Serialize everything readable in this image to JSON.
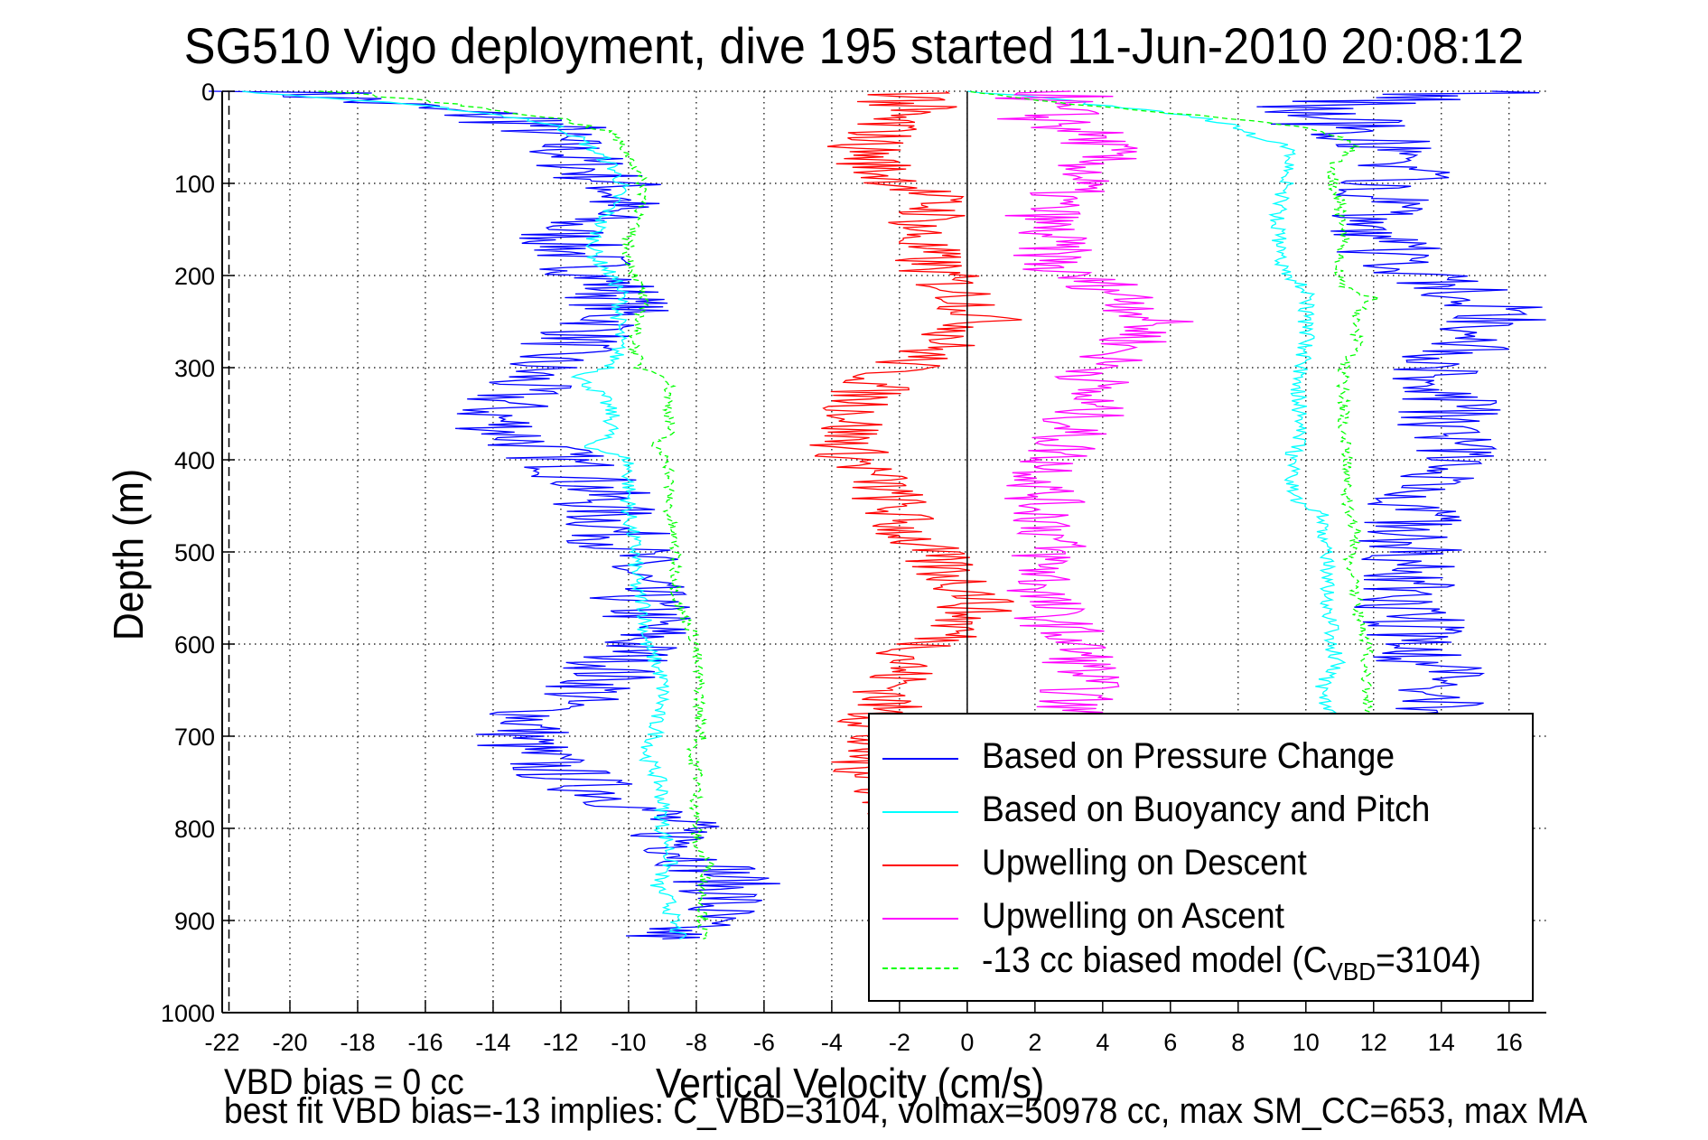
{
  "chart_data": {
    "type": "line",
    "title": "SG510 Vigo deployment, dive 195 started 11-Jun-2010 20:08:12",
    "xlabel": "Vertical Velocity (cm/s)",
    "ylabel": "Depth (m)",
    "xlim": [
      -22,
      17.1
    ],
    "ylim": [
      1000,
      0
    ],
    "y_reversed": true,
    "grid": true,
    "grid_style": "dotted",
    "x_ticks": [
      -22,
      -20,
      -18,
      -16,
      -14,
      -12,
      -10,
      -8,
      -6,
      -4,
      -2,
      0,
      2,
      4,
      6,
      8,
      10,
      12,
      14,
      16
    ],
    "y_ticks": [
      0,
      100,
      200,
      300,
      400,
      500,
      600,
      700,
      800,
      900,
      1000
    ],
    "reference_lines": [
      {
        "name": "zero-velocity-line",
        "x": 0,
        "style": "solid",
        "color": "#000000"
      },
      {
        "name": "min-velocity-dashed-line",
        "x": -21.8,
        "style": "dashed",
        "color": "#000000"
      }
    ],
    "legend_position": "bottom-right",
    "series": [
      {
        "name": "Based on Pressure Change",
        "color": "#0000ff",
        "style": "solid",
        "segments": [
          {
            "label": "descent",
            "depth": [
              0,
              10,
              20,
              30,
              45,
              60,
              75,
              90,
              105,
              120,
              135,
              150,
              165,
              180,
              195,
              210,
              230,
              250,
              270,
              290,
              310,
              330,
              350,
              370,
              390,
              410,
              430,
              450,
              470,
              490,
              510,
              530,
              550,
              570,
              590,
              610,
              630,
              650,
              670,
              690,
              710,
              730,
              750,
              770,
              790,
              810,
              830,
              850,
              870,
              890,
              905,
              915,
              920
            ],
            "velocity": [
              -20,
              -18,
              -16,
              -13,
              -12.5,
              -12,
              -11.5,
              -11,
              -10.2,
              -10.3,
              -11,
              -12,
              -11.8,
              -11.5,
              -11,
              -10.5,
              -10.2,
              -10.5,
              -11.5,
              -12.5,
              -13,
              -13.5,
              -14,
              -13.5,
              -12.5,
              -11.5,
              -11,
              -10.8,
              -10.5,
              -10.2,
              -10,
              -10,
              -9.8,
              -9.5,
              -9.5,
              -10,
              -10.5,
              -11,
              -12.5,
              -13,
              -13.2,
              -12.5,
              -11.5,
              -10,
              -9,
              -8.5,
              -8,
              -7.2,
              -7,
              -7.5,
              -8.5,
              -9,
              -9
            ]
          },
          {
            "label": "ascent",
            "depth": [
              920,
              900,
              880,
              860,
              840,
              820,
              800,
              780,
              760,
              740,
              720,
              700,
              680,
              660,
              640,
              620,
              600,
              580,
              560,
              540,
              520,
              500,
              480,
              460,
              440,
              420,
              400,
              380,
              360,
              340,
              320,
              300,
              280,
              260,
              240,
              225,
              210,
              195,
              180,
              165,
              150,
              135,
              120,
              105,
              90,
              75,
              60,
              45,
              30,
              15,
              5,
              0
            ],
            "velocity": [
              14,
              13.8,
              13.5,
              13.2,
              13,
              12.8,
              13.2,
              13.5,
              13,
              12.5,
              12.5,
              13.5,
              14,
              14.2,
              14,
              13.5,
              13.5,
              13.2,
              13,
              12.8,
              12.8,
              13,
              13.2,
              13.3,
              13.5,
              13.8,
              14,
              14.2,
              14.3,
              14.3,
              14.2,
              14,
              14.5,
              15.5,
              15.8,
              15.2,
              14,
              13,
              12.5,
              12.5,
              12.3,
              12.3,
              12.3,
              12.5,
              12.8,
              13,
              12.5,
              11.5,
              11,
              10.5,
              14,
              15.5
            ]
          }
        ]
      },
      {
        "name": "Based on Buoyancy and Pitch",
        "color": "#00ffff",
        "style": "solid",
        "segments": [
          {
            "label": "descent",
            "depth": [
              0,
              10,
              20,
              30,
              40,
              50,
              65,
              80,
              100,
              120,
              140,
              160,
              180,
              200,
              220,
              240,
              260,
              280,
              300,
              310,
              330,
              350,
              370,
              385,
              400,
              420,
              440,
              460,
              480,
              500,
              520,
              540,
              560,
              580,
              600,
              620,
              640,
              660,
              680,
              700,
              720,
              740,
              760,
              780,
              800,
              820,
              840,
              860,
              880,
              900,
              920
            ],
            "velocity": [
              -21.5,
              -18,
              -15,
              -13,
              -12,
              -11.5,
              -11,
              -10.5,
              -10.2,
              -10.4,
              -10.8,
              -11,
              -11,
              -10.5,
              -10.2,
              -10.3,
              -10.3,
              -10.3,
              -10.5,
              -11.5,
              -10.8,
              -10.5,
              -10.5,
              -11.2,
              -10,
              -10,
              -10,
              -10,
              -9.9,
              -9.8,
              -9.8,
              -9.8,
              -9.5,
              -9.5,
              -9.5,
              -9.2,
              -9,
              -9,
              -9.2,
              -9.2,
              -9.5,
              -9.2,
              -9,
              -9,
              -9,
              -8.8,
              -8.8,
              -9.2,
              -8.8,
              -8.7,
              -8.5
            ]
          },
          {
            "label": "ascent",
            "depth": [
              920,
              900,
              880,
              860,
              840,
              820,
              800,
              780,
              760,
              740,
              720,
              700,
              680,
              660,
              640,
              620,
              600,
              580,
              560,
              540,
              520,
              500,
              480,
              460,
              450,
              430,
              410,
              400,
              380,
              360,
              340,
              320,
              300,
              280,
              260,
              240,
              220,
              200,
              180,
              160,
              140,
              120,
              100,
              80,
              60,
              50,
              40,
              30,
              20,
              10,
              0
            ],
            "velocity": [
              10.5,
              10.5,
              10.5,
              10.5,
              10.5,
              10.5,
              10.8,
              10.8,
              10.6,
              10.5,
              10.6,
              10.8,
              10.8,
              10.5,
              10.5,
              10.9,
              10.8,
              10.8,
              10.6,
              10.6,
              10.6,
              10.6,
              10.5,
              10.5,
              9.8,
              9.6,
              9.6,
              9.5,
              9.8,
              9.8,
              9.8,
              9.8,
              9.8,
              10,
              10,
              10,
              10.1,
              9.5,
              9.2,
              9.2,
              9.2,
              9.2,
              9.5,
              9.5,
              9.5,
              8.5,
              8,
              7,
              5,
              3,
              0
            ]
          }
        ]
      },
      {
        "name": "Upwelling on Descent",
        "color": "#ff0000",
        "style": "solid",
        "depth": [
          0,
          15,
          30,
          45,
          60,
          75,
          90,
          105,
          120,
          135,
          150,
          165,
          180,
          195,
          210,
          230,
          250,
          270,
          290,
          310,
          330,
          350,
          370,
          390,
          410,
          430,
          450,
          470,
          490,
          510,
          530,
          550,
          570,
          590,
          610,
          630,
          650,
          670,
          690,
          710,
          730,
          750,
          770,
          790,
          810,
          830,
          850,
          870,
          890,
          910,
          920
        ],
        "velocity": [
          -1,
          -2,
          -2.5,
          -2.5,
          -3,
          -2.8,
          -2.5,
          -1.5,
          -1,
          -1,
          -1.5,
          -1.5,
          -1.2,
          -1,
          -0.5,
          0.2,
          0.5,
          -0.5,
          -1.5,
          -2.5,
          -3,
          -3.2,
          -3.5,
          -3.5,
          -3,
          -2.5,
          -2.2,
          -2,
          -1.5,
          -1,
          -0.3,
          0.5,
          0,
          -0.5,
          -1.5,
          -2,
          -2.2,
          -2.5,
          -2.8,
          -3,
          -3,
          -2.5,
          -2,
          -1.8,
          -1.5,
          -1.2,
          -1,
          -0.8,
          -0.5,
          -0.2,
          -0.2
        ]
      },
      {
        "name": "Upwelling on Ascent",
        "color": "#ff00ff",
        "style": "solid",
        "depth": [
          0,
          15,
          30,
          45,
          60,
          75,
          90,
          105,
          120,
          135,
          150,
          165,
          180,
          195,
          210,
          230,
          250,
          270,
          290,
          310,
          330,
          350,
          370,
          390,
          410,
          430,
          450,
          470,
          490,
          510,
          530,
          550,
          570,
          590,
          610,
          630,
          650,
          670,
          690,
          710,
          730,
          750,
          770,
          790,
          810,
          830,
          850,
          870,
          890,
          910,
          920
        ],
        "velocity": [
          3,
          2,
          2.5,
          3.5,
          4,
          3.8,
          3.5,
          3,
          2.5,
          2.3,
          2.3,
          2.5,
          2.5,
          2.5,
          4,
          5,
          5.5,
          5,
          4.2,
          3.8,
          3.5,
          3.5,
          3,
          2.8,
          2.5,
          2.2,
          2.3,
          2.5,
          2.5,
          2.3,
          2.3,
          2.2,
          2.5,
          3,
          3.3,
          3.5,
          3.3,
          3,
          2.8,
          2.7,
          2.7,
          2.5,
          2.3,
          2,
          1.8,
          1.3,
          1,
          0.8,
          1.2,
          1.5,
          1.5
        ]
      },
      {
        "name": "-13 cc biased model (C_VBD=3104)",
        "color": "#00ff00",
        "style": "dashed",
        "segments": [
          {
            "label": "descent",
            "depth": [
              0,
              10,
              20,
              30,
              45,
              60,
              80,
              100,
              120,
              140,
              160,
              180,
              200,
              220,
              240,
              260,
              280,
              300,
              310,
              330,
              350,
              370,
              385,
              400,
              420,
              440,
              460,
              480,
              500,
              520,
              540,
              560,
              580,
              600,
              620,
              640,
              660,
              680,
              700,
              720,
              740,
              760,
              780,
              800,
              820,
              840,
              860,
              880,
              900,
              920
            ],
            "velocity": [
              -19,
              -16,
              -14,
              -12,
              -10.5,
              -10.2,
              -9.8,
              -9.6,
              -9.5,
              -9.8,
              -10,
              -10,
              -9.8,
              -9.6,
              -9.6,
              -9.8,
              -9.8,
              -9.7,
              -8.8,
              -8.8,
              -8.8,
              -8.8,
              -9.3,
              -8.8,
              -8.8,
              -8.8,
              -8.8,
              -8.7,
              -8.6,
              -8.6,
              -8.6,
              -8.5,
              -8.2,
              -8,
              -8,
              -7.9,
              -7.9,
              -7.9,
              -7.8,
              -8.2,
              -7.9,
              -8,
              -8,
              -8,
              -8,
              -7.6,
              -7.8,
              -7.8,
              -7.8,
              -7.8
            ]
          },
          {
            "label": "ascent",
            "depth": [
              920,
              900,
              880,
              860,
              840,
              820,
              800,
              780,
              760,
              740,
              720,
              700,
              680,
              660,
              640,
              620,
              600,
              580,
              560,
              540,
              520,
              500,
              480,
              460,
              440,
              420,
              400,
              380,
              360,
              340,
              320,
              300,
              280,
              260,
              240,
              225,
              210,
              195,
              180,
              160,
              140,
              120,
              100,
              80,
              60,
              50,
              40,
              30,
              20,
              10,
              0
            ],
            "velocity": [
              11.8,
              11.8,
              11.8,
              11.6,
              11.5,
              11.6,
              11.6,
              11.5,
              11.2,
              11.2,
              11.2,
              11.5,
              11.8,
              11.8,
              11.8,
              11.8,
              11.8,
              11.6,
              11.5,
              11.5,
              11.3,
              11.3,
              11.5,
              11.3,
              11.2,
              11.2,
              11.2,
              11.2,
              11.1,
              11.1,
              11.1,
              11.1,
              11.5,
              11.5,
              11.5,
              12,
              11,
              11,
              11,
              11.1,
              11,
              11,
              10.8,
              10.8,
              11.5,
              11,
              10,
              8,
              5,
              2,
              0
            ]
          }
        ]
      }
    ]
  },
  "legend": {
    "items": [
      {
        "label": "Based on Pressure Change",
        "color": "#0000ff",
        "dashed": false
      },
      {
        "label": "Based on Buoyancy and Pitch",
        "color": "#00ffff",
        "dashed": false
      },
      {
        "label": "Upwelling on Descent",
        "color": "#ff0000",
        "dashed": false
      },
      {
        "label": "Upwelling on Ascent",
        "color": "#ff00ff",
        "dashed": false
      },
      {
        "label_prefix": "-13 cc biased model (C",
        "label_sub": "VBD",
        "label_suffix": "=3104)",
        "color": "#00ff00",
        "dashed": true
      }
    ]
  },
  "annotations": {
    "line1": "VBD bias = 0 cc",
    "line2": "best fit VBD bias=-13 implies: C_VBD=3104, volmax=50978 cc, max SM_CC=653, max MA"
  }
}
